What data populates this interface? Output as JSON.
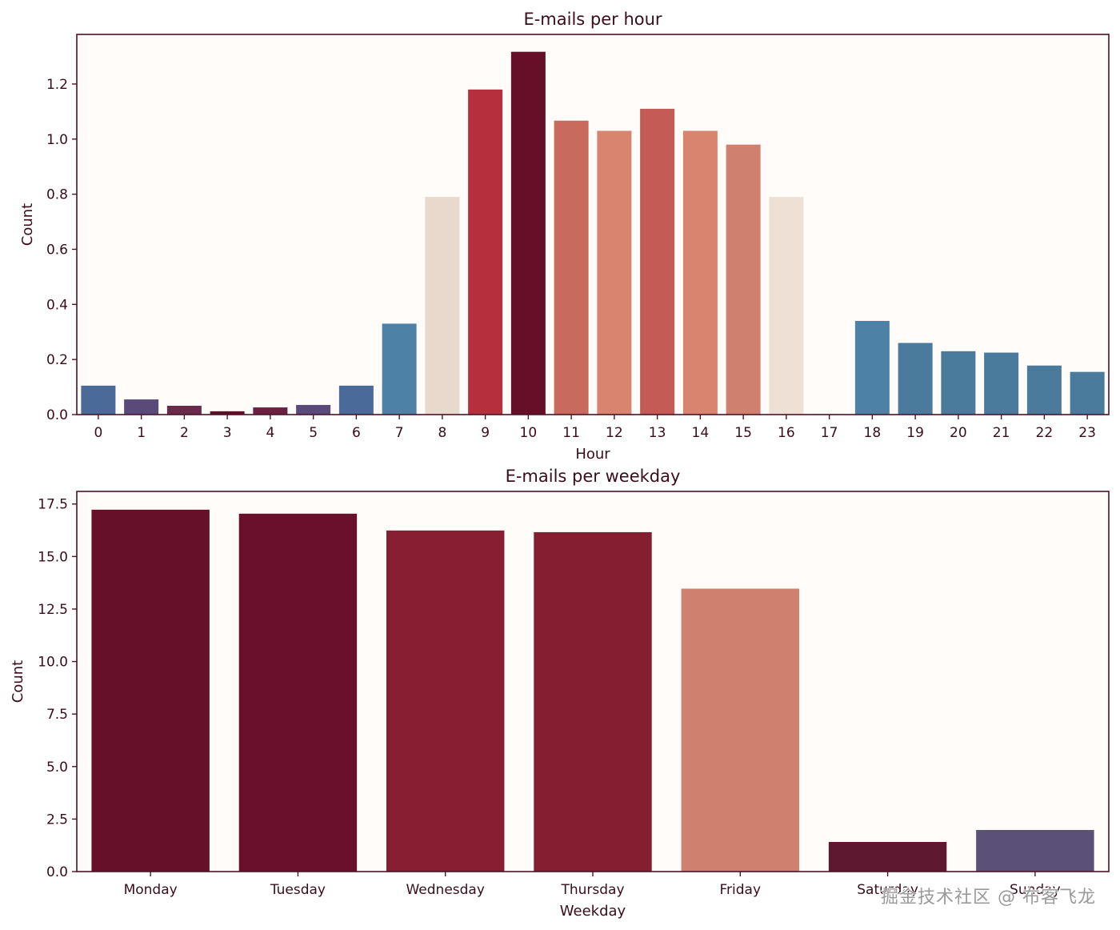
{
  "chart_data": [
    {
      "type": "bar",
      "title": "E-mails per hour",
      "xlabel": "Hour",
      "ylabel": "Count",
      "ylim": [
        0,
        1.38
      ],
      "yticks": [
        0.0,
        0.2,
        0.4,
        0.6,
        0.8,
        1.0,
        1.2
      ],
      "ytick_labels": [
        "0.0",
        "0.2",
        "0.4",
        "0.6",
        "0.8",
        "1.0",
        "1.2"
      ],
      "grid": false,
      "categories": [
        "0",
        "1",
        "2",
        "3",
        "4",
        "5",
        "6",
        "7",
        "8",
        "9",
        "10",
        "11",
        "12",
        "13",
        "14",
        "15",
        "16",
        "17",
        "18",
        "19",
        "20",
        "21",
        "22",
        "23"
      ],
      "values": [
        0.105,
        0.055,
        0.032,
        0.012,
        0.026,
        0.035,
        0.105,
        0.33,
        0.79,
        1.18,
        1.317,
        1.067,
        1.03,
        1.11,
        1.03,
        0.98,
        0.79,
        0.003,
        0.34,
        0.26,
        0.23,
        0.225,
        0.178,
        0.155
      ],
      "colors": [
        "#4a6a9a",
        "#5a4a7a",
        "#6a2a4a",
        "#5e1028",
        "#6a2040",
        "#5a4a7a",
        "#4a6a9a",
        "#4d82a6",
        "#e9d8cc",
        "#b52f3d",
        "#660f29",
        "#c86a5c",
        "#d8846e",
        "#c55b55",
        "#d8846e",
        "#d0806e",
        "#efe0d6",
        "#f5ebe6",
        "#4d82a6",
        "#4a7a9c",
        "#4a7a9c",
        "#4a7a9c",
        "#4a7a9c",
        "#4a7a9c"
      ]
    },
    {
      "type": "bar",
      "title": "E-mails per weekday",
      "xlabel": "Weekday",
      "ylabel": "Count",
      "ylim": [
        0,
        18.1
      ],
      "yticks": [
        0.0,
        2.5,
        5.0,
        7.5,
        10.0,
        12.5,
        15.0,
        17.5
      ],
      "ytick_labels": [
        "0.0",
        "2.5",
        "5.0",
        "7.5",
        "10.0",
        "12.5",
        "15.0",
        "17.5"
      ],
      "grid": false,
      "categories": [
        "Monday",
        "Tuesday",
        "Wednesday",
        "Thursday",
        "Friday",
        "Saturday",
        "Sunday"
      ],
      "values": [
        17.23,
        17.04,
        16.24,
        16.16,
        13.47,
        1.41,
        1.98
      ],
      "colors": [
        "#67102a",
        "#6a102c",
        "#881e32",
        "#841e31",
        "#d0806e",
        "#5e1830",
        "#5a5078"
      ]
    }
  ],
  "watermark": "掘金技术社区 @ 布客飞龙",
  "theme": {
    "axes_bg": "#fffcfa",
    "axes_edge": "#4a1428",
    "text": "#3a0d1c"
  }
}
